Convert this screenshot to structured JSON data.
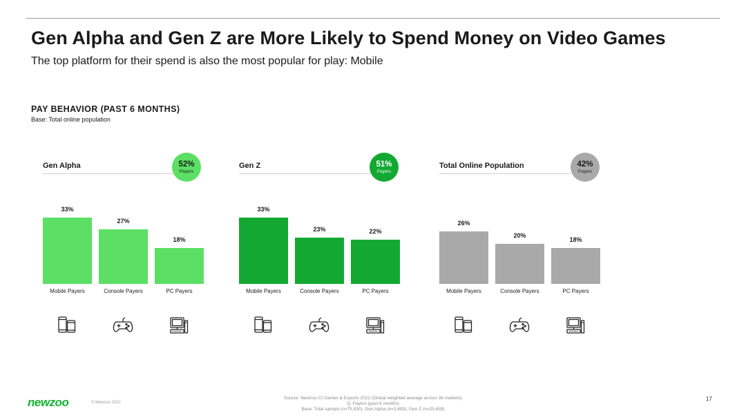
{
  "title": "Gen Alpha and Gen Z are More Likely to Spend Money on Video Games",
  "subtitle": "The top platform for their spend is also the most popular for play: Mobile",
  "section": {
    "title": "PAY BEHAVIOR (PAST 6 MONTHS)",
    "base": "Base: Total online population"
  },
  "colors": {
    "gen_alpha": "#5bdf64",
    "gen_z": "#13a832",
    "total": "#a9a9a9"
  },
  "chart_data": [
    {
      "type": "bar",
      "title": "Gen Alpha",
      "badge_value": "52%",
      "badge_label": "Payers",
      "categories": [
        "Mobile Payers",
        "Console Payers",
        "PC Payers"
      ],
      "values": [
        33,
        27,
        18
      ],
      "labels": [
        "33%",
        "27%",
        "18%"
      ],
      "ylim": [
        0,
        33
      ]
    },
    {
      "type": "bar",
      "title": "Gen Z",
      "badge_value": "51%",
      "badge_label": "Payers",
      "categories": [
        "Mobile Payers",
        "Console Payers",
        "PC Payers"
      ],
      "values": [
        33,
        23,
        22
      ],
      "labels": [
        "33%",
        "23%",
        "22%"
      ],
      "ylim": [
        0,
        33
      ]
    },
    {
      "type": "bar",
      "title": "Total Online Population",
      "badge_value": "42%",
      "badge_label": "Payers",
      "categories": [
        "Mobile Payers",
        "Console Payers",
        "PC Payers"
      ],
      "values": [
        26,
        20,
        18
      ],
      "labels": [
        "26%",
        "20%",
        "18%"
      ],
      "ylim": [
        0,
        33
      ]
    }
  ],
  "icons": [
    "mobile-icon",
    "gamepad-icon",
    "pc-icon"
  ],
  "footer": {
    "logo": "newzoo",
    "copyright": "© Newzoo 2022",
    "source_line1": "Source: Newzoo CI Games & Esports 2022 (Global weighted average across 36 markets)",
    "source_line2": "Q. Payers (past 6 months)",
    "source_line3": "Base: Total sample (n=75,930), Gen Alpha (n=3,693), Gen Z (n=25,659)",
    "page_number": "17"
  }
}
